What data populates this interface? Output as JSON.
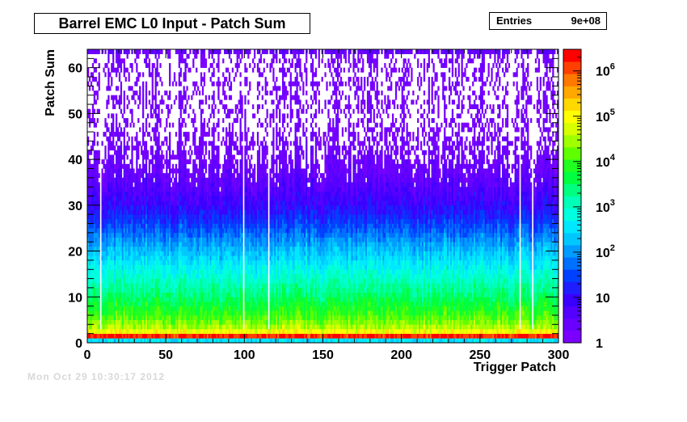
{
  "chart_data": {
    "type": "heatmap",
    "title": "Barrel EMC L0 Input - Patch Sum",
    "stats": {
      "label": "Entries",
      "value": "9e+08"
    },
    "xlabel": "Trigger Patch",
    "ylabel": "Patch Sum",
    "xlim": [
      0,
      300
    ],
    "ylim": [
      0,
      64
    ],
    "x_ticks": [
      0,
      50,
      100,
      150,
      200,
      250,
      300
    ],
    "y_ticks": [
      0,
      10,
      20,
      30,
      40,
      50,
      60
    ],
    "z_scale": "log",
    "zlim": [
      1,
      3000000
    ],
    "z_ticks": [
      {
        "value": 1,
        "label": "1"
      },
      {
        "value": 10,
        "label": "10"
      },
      {
        "value": 100,
        "label": "10",
        "exp": "2"
      },
      {
        "value": 1000,
        "label": "10",
        "exp": "3"
      },
      {
        "value": 10000,
        "label": "10",
        "exp": "4"
      },
      {
        "value": 100000,
        "label": "10",
        "exp": "5"
      },
      {
        "value": 1000000,
        "label": "10",
        "exp": "6"
      }
    ],
    "palette": [
      "#7c00ff",
      "#6a00ff",
      "#5400ff",
      "#3a00ff",
      "#1e1eff",
      "#0040ff",
      "#0070ff",
      "#009cff",
      "#00c8ff",
      "#00e8ff",
      "#00ffe0",
      "#00ffb8",
      "#00ff80",
      "#00ff40",
      "#20ff20",
      "#60ff00",
      "#a0ff00",
      "#d8ff00",
      "#ffff00",
      "#ffd800",
      "#ffa800",
      "#ff7800",
      "#ff4000",
      "#ff0000"
    ],
    "rows": [
      {
        "y": 0,
        "log_counts": 2.5
      },
      {
        "y": 1,
        "log_counts": 6.2
      },
      {
        "y": 2,
        "log_counts": 4.9
      },
      {
        "y": 3,
        "log_counts": 4.5
      },
      {
        "y": 5,
        "log_counts": 4.1
      },
      {
        "y": 10,
        "log_counts": 3.4
      },
      {
        "y": 15,
        "log_counts": 2.8
      },
      {
        "y": 20,
        "log_counts": 2.2
      },
      {
        "y": 25,
        "log_counts": 1.5
      },
      {
        "y": 30,
        "log_counts": 0.9
      },
      {
        "y": 35,
        "log_counts": 0.5
      },
      {
        "y": 40,
        "log_counts": 0.25
      },
      {
        "y": 45,
        "log_counts": 0.1
      },
      {
        "y": 50,
        "log_counts": 0.05
      },
      {
        "y": 62,
        "log_counts": 0.05
      },
      {
        "y": 63,
        "log_counts": 0.4
      }
    ],
    "empty_columns": [
      8,
      99,
      115,
      275,
      283
    ]
  },
  "footer": "Mon Oct 29 10:30:17 2012"
}
